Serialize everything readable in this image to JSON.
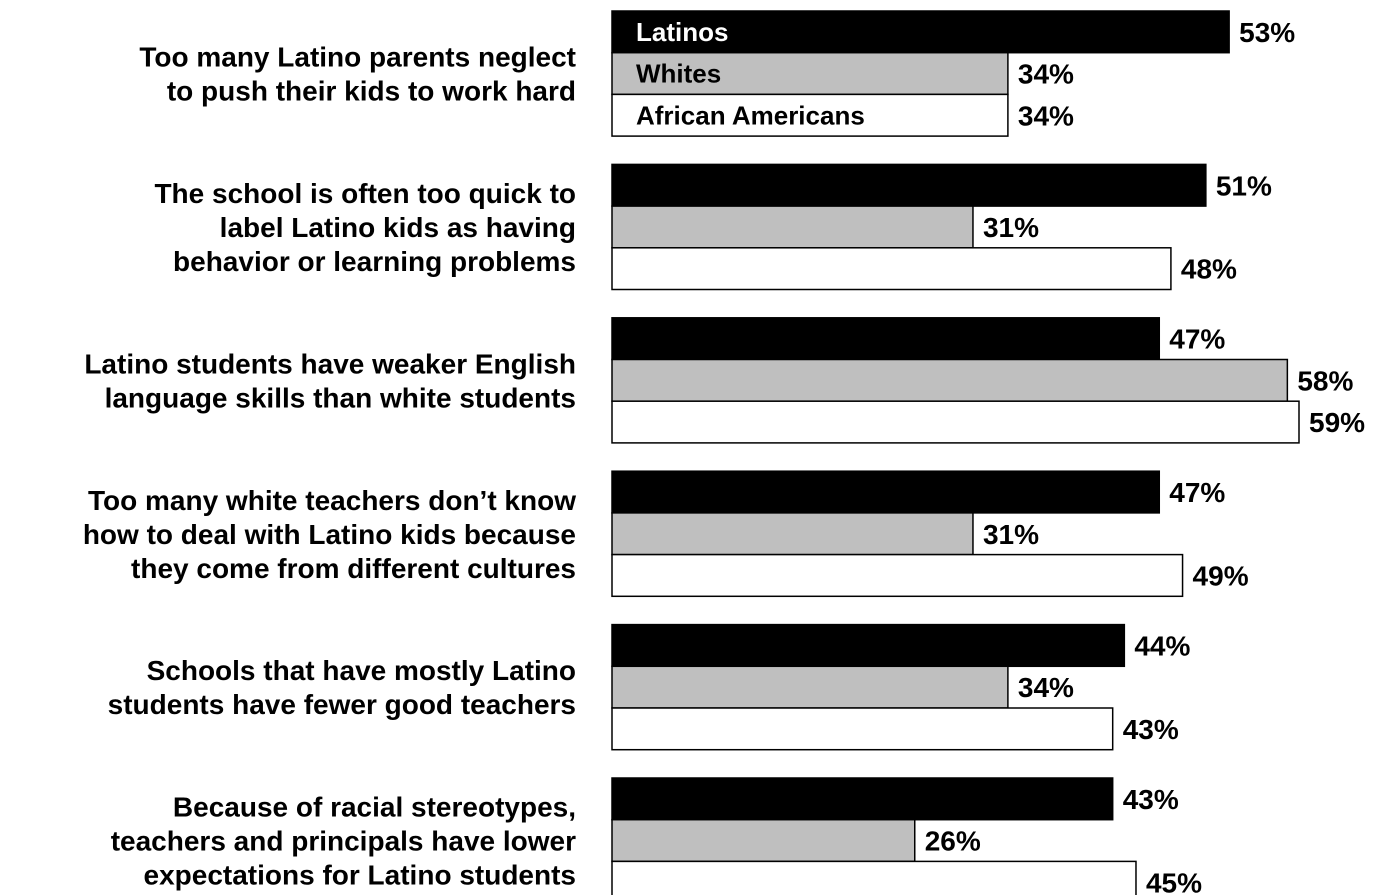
{
  "chart_data": {
    "type": "bar",
    "orientation": "horizontal",
    "categories": [
      [
        "Too many Latino parents neglect",
        "to push their kids to work hard"
      ],
      [
        "The school is often too quick to",
        "label Latino kids as having",
        "behavior or learning problems"
      ],
      [
        "Latino students have weaker English",
        "language skills than white students"
      ],
      [
        "Too many white teachers don’t know",
        "how to deal with Latino kids because",
        "they come from different cultures"
      ],
      [
        "Schools that have mostly Latino",
        "students have fewer good teachers"
      ],
      [
        "Because of racial stereotypes,",
        "teachers and principals have lower",
        "expectations for Latino students"
      ]
    ],
    "series": [
      {
        "name": "Latinos",
        "color": "#000000",
        "text_color": "#ffffff",
        "values": [
          53,
          51,
          47,
          47,
          44,
          43
        ]
      },
      {
        "name": "Whites",
        "color": "#bfbfbf",
        "text_color": "#000000",
        "values": [
          34,
          31,
          58,
          31,
          34,
          26
        ]
      },
      {
        "name": "African Americans",
        "color": "#ffffff",
        "text_color": "#000000",
        "values": [
          34,
          48,
          59,
          49,
          43,
          45
        ]
      }
    ],
    "value_suffix": "%",
    "legend_position": "inside-first-group",
    "grid": false,
    "xlim": [
      0,
      59
    ]
  }
}
